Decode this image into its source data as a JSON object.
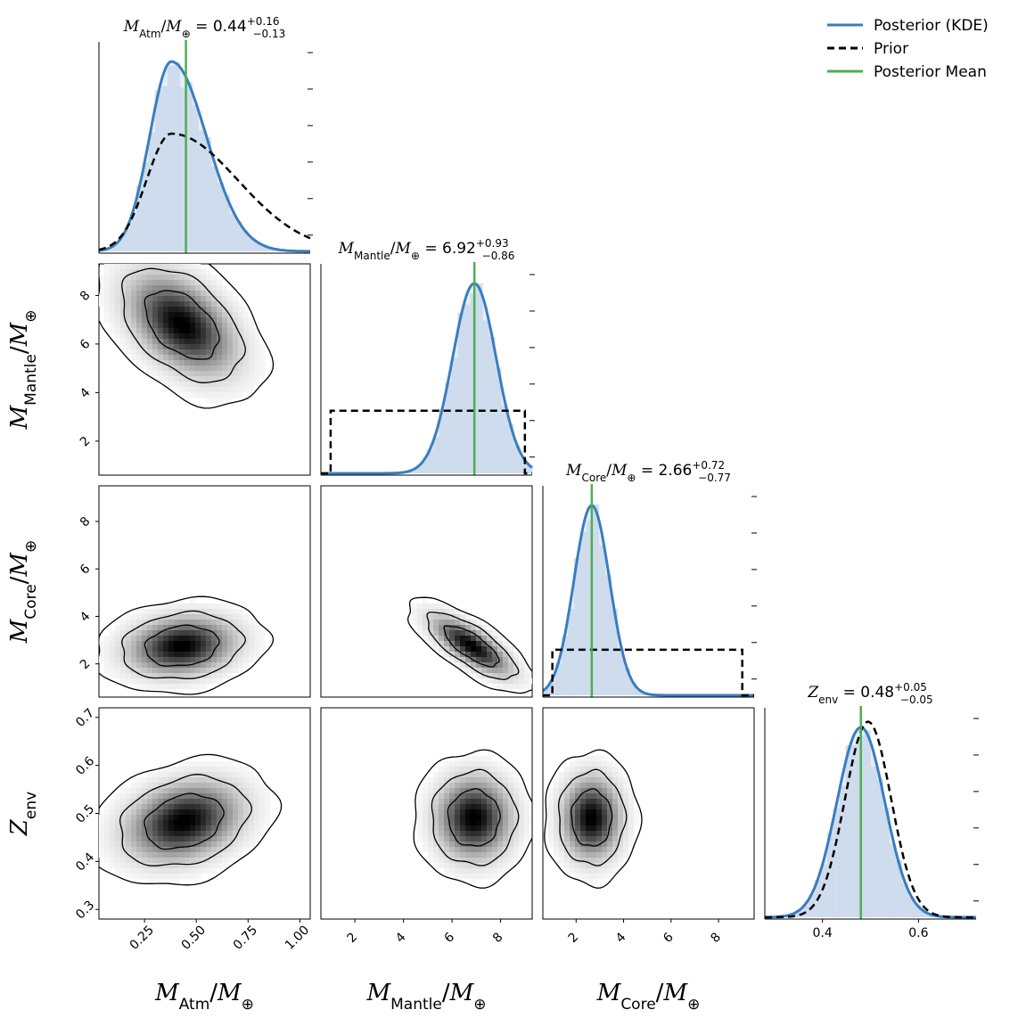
{
  "chart_data": {
    "type": "corner",
    "parameters": [
      {
        "key": "M_Atm",
        "sym": "M",
        "sub": "Atm",
        "den": "M",
        "den_sub": "⊕",
        "range": [
          0.03,
          1.05
        ],
        "ticks": [
          0.25,
          0.5,
          0.75,
          1.0
        ],
        "tick_labels": [
          "0.25",
          "0.50",
          "0.75",
          "1.00"
        ]
      },
      {
        "key": "M_Mantle",
        "sym": "M",
        "sub": "Mantle",
        "den": "M",
        "den_sub": "⊕",
        "range": [
          0.6,
          9.3
        ],
        "ticks": [
          2,
          4,
          6,
          8
        ],
        "tick_labels": [
          "2",
          "4",
          "6",
          "8"
        ]
      },
      {
        "key": "M_Core",
        "sym": "M",
        "sub": "Core",
        "den": "M",
        "den_sub": "⊕",
        "range": [
          0.6,
          9.5
        ],
        "ticks": [
          2,
          4,
          6,
          8
        ],
        "tick_labels": [
          "2",
          "4",
          "6",
          "8"
        ]
      },
      {
        "key": "Z_env",
        "sym": "Z",
        "sub": "env",
        "den": "",
        "den_sub": "",
        "range": [
          0.28,
          0.72
        ],
        "ticks": [
          0.3,
          0.4,
          0.5,
          0.6,
          0.7
        ],
        "tick_labels": [
          "0.3",
          "0.4",
          "0.5",
          "0.6",
          "0.7"
        ],
        "diag_ticks": [
          0.4,
          0.6
        ],
        "diag_tick_labels": [
          "0.4",
          "0.6"
        ]
      }
    ],
    "summaries": [
      {
        "value": "0.44",
        "plus": "+0.16",
        "minus": "−0.13",
        "mean": 0.45
      },
      {
        "value": "6.92",
        "plus": "+0.93",
        "minus": "−0.86",
        "mean": 6.92
      },
      {
        "value": "2.66",
        "plus": "+0.72",
        "minus": "−0.77",
        "mean": 2.66
      },
      {
        "value": "0.48",
        "plus": "+0.05",
        "minus": "−0.05",
        "mean": 0.48
      }
    ],
    "marginals": [
      {
        "posterior": {
          "shape": "gamma",
          "mode": 0.38,
          "sd": 0.135,
          "skew": 1.25
        },
        "prior": {
          "shape": "lognormal",
          "mode": 0.38,
          "sd_left": 0.12,
          "sd_right": 0.32,
          "rel_height": 0.62
        },
        "ymax": 1.0
      },
      {
        "posterior": {
          "shape": "normal",
          "mean": 6.92,
          "sd": 0.9
        },
        "prior": {
          "shape": "uniform",
          "low": 1.0,
          "high": 9.0,
          "rel_height": 0.33
        },
        "ymax": 1.0
      },
      {
        "posterior": {
          "shape": "normal",
          "mean": 2.66,
          "sd": 0.75
        },
        "prior": {
          "shape": "uniform",
          "low": 1.0,
          "high": 9.0,
          "rel_height": 0.24
        },
        "ymax": 1.0
      },
      {
        "posterior": {
          "shape": "normal",
          "mean": 0.48,
          "sd": 0.05
        },
        "prior": {
          "shape": "normal",
          "mean": 0.495,
          "sd": 0.048,
          "rel_height": 1.03
        },
        "ymax": 1.0
      }
    ],
    "joint": [
      {
        "row": 1,
        "col": 0,
        "cx": 0.43,
        "cy": 6.8,
        "sx": 0.15,
        "sy": 1.2,
        "rho": -0.45
      },
      {
        "row": 2,
        "col": 0,
        "cx": 0.43,
        "cy": 2.75,
        "sx": 0.15,
        "sy": 0.72,
        "rho": 0.15
      },
      {
        "row": 2,
        "col": 1,
        "cx": 6.8,
        "cy": 2.75,
        "sx": 0.95,
        "sy": 0.72,
        "rho": -0.75
      },
      {
        "row": 3,
        "col": 0,
        "cx": 0.44,
        "cy": 0.483,
        "sx": 0.16,
        "sy": 0.048,
        "rho": 0.25
      },
      {
        "row": 3,
        "col": 1,
        "cx": 6.9,
        "cy": 0.49,
        "sx": 0.9,
        "sy": 0.05,
        "rho": 0.0
      },
      {
        "row": 3,
        "col": 2,
        "cx": 2.65,
        "cy": 0.49,
        "sx": 0.72,
        "sy": 0.05,
        "rho": 0.0
      }
    ],
    "legend": [
      {
        "label": "Posterior (KDE)",
        "style": "solid",
        "color": "#3a7dbf"
      },
      {
        "label": "Prior",
        "style": "dashed",
        "color": "#000000"
      },
      {
        "label": "Posterior Mean",
        "style": "solid",
        "color": "#4caf50"
      }
    ],
    "legend_position": "top-right"
  },
  "colors": {
    "posterior": "#3a7dbf",
    "posterior_fill": "#c9d9ec",
    "prior": "#000000",
    "mean": "#4caf50",
    "contour": "#000000"
  }
}
